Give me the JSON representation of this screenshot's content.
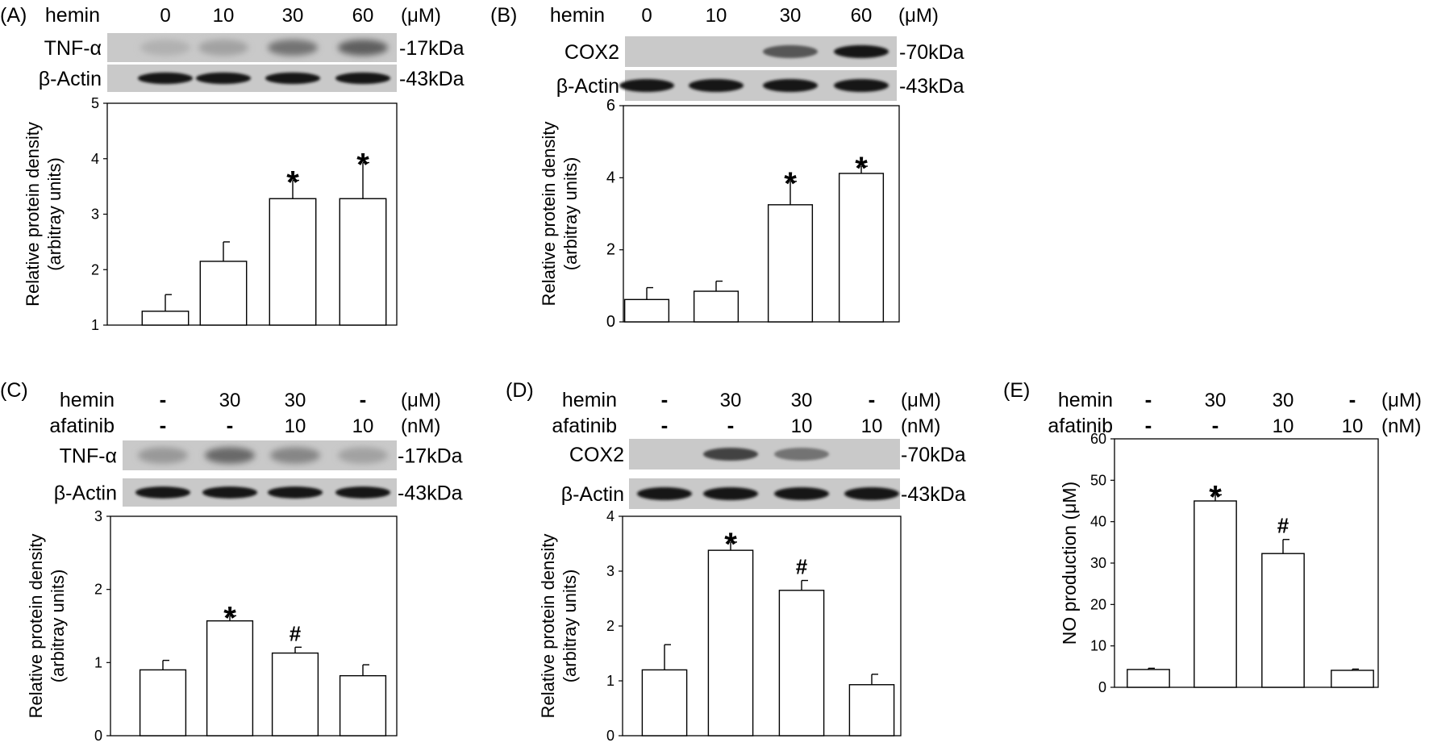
{
  "figure": {
    "panels": [
      {
        "letter": "(A)",
        "treatments": [
          {
            "name": "hemin",
            "unit": "(μM)",
            "values": [
              "0",
              "10",
              "30",
              "60"
            ]
          }
        ],
        "blots": [
          {
            "protein": "TNF-α",
            "size": "-17kDa",
            "intensities": [
              0.12,
              0.2,
              0.45,
              0.55
            ],
            "diffuse": true
          },
          {
            "protein": "β-Actin",
            "size": "-43kDa",
            "intensities": [
              0.95,
              0.95,
              0.95,
              0.95
            ],
            "diffuse": false
          }
        ]
      },
      {
        "letter": "(B)",
        "treatments": [
          {
            "name": "hemin",
            "unit": "(μM)",
            "values": [
              "0",
              "10",
              "30",
              "60"
            ]
          }
        ],
        "blots": [
          {
            "protein": "COX2",
            "size": "-70kDa",
            "intensities": [
              0.0,
              0.0,
              0.6,
              0.95
            ],
            "diffuse": false
          },
          {
            "protein": "β-Actin",
            "size": "-43kDa",
            "intensities": [
              0.95,
              0.95,
              0.95,
              0.95
            ],
            "diffuse": false
          }
        ]
      },
      {
        "letter": "(C)",
        "treatments": [
          {
            "name": "hemin",
            "unit": "(μM)",
            "values": [
              "-",
              "30",
              "30",
              "-"
            ]
          },
          {
            "name": "afatinib",
            "unit": "(nM)",
            "values": [
              "-",
              "-",
              "10",
              "10"
            ]
          }
        ],
        "blots": [
          {
            "protein": "TNF-α",
            "size": "-17kDa",
            "intensities": [
              0.25,
              0.5,
              0.35,
              0.2
            ],
            "diffuse": true
          },
          {
            "protein": "β-Actin",
            "size": "-43kDa",
            "intensities": [
              0.95,
              0.95,
              0.95,
              0.95
            ],
            "diffuse": false
          }
        ]
      },
      {
        "letter": "(D)",
        "treatments": [
          {
            "name": "hemin",
            "unit": "(μM)",
            "values": [
              "-",
              "30",
              "30",
              "-"
            ]
          },
          {
            "name": "afatinib",
            "unit": "(nM)",
            "values": [
              "-",
              "-",
              "10",
              "10"
            ]
          }
        ],
        "blots": [
          {
            "protein": "COX2",
            "size": "-70kDa",
            "intensities": [
              0.0,
              0.7,
              0.45,
              0.0
            ],
            "diffuse": false
          },
          {
            "protein": "β-Actin",
            "size": "-43kDa",
            "intensities": [
              0.95,
              0.95,
              0.95,
              0.95
            ],
            "diffuse": false
          }
        ]
      },
      {
        "letter": "(E)",
        "treatments": [
          {
            "name": "hemin",
            "unit": "(μM)",
            "values": [
              "-",
              "30",
              "30",
              "-"
            ]
          },
          {
            "name": "afatinib",
            "unit": "(nM)",
            "values": [
              "-",
              "-",
              "10",
              "10"
            ]
          }
        ],
        "blots": []
      }
    ]
  },
  "chart_data": [
    {
      "type": "bar",
      "panel": "(A)",
      "categories": [
        "0",
        "10",
        "30",
        "60"
      ],
      "values": [
        1.25,
        2.15,
        3.28,
        3.28
      ],
      "errors": [
        0.3,
        0.35,
        0.33,
        0.65
      ],
      "significance": [
        "",
        "",
        "*",
        "*"
      ],
      "ylabel": "Relative protein density\n(arbitray units)",
      "xlabel": "",
      "ylim": [
        1,
        5
      ],
      "yticks": [
        1,
        2,
        3,
        4,
        5
      ]
    },
    {
      "type": "bar",
      "panel": "(B)",
      "categories": [
        "0",
        "10",
        "30",
        "60"
      ],
      "values": [
        0.62,
        0.85,
        3.25,
        4.12
      ],
      "errors": [
        0.33,
        0.28,
        0.65,
        0.2
      ],
      "significance": [
        "",
        "",
        "*",
        "*"
      ],
      "ylabel": "Relative protein density\n(arbitray units)",
      "xlabel": "",
      "ylim": [
        0,
        6
      ],
      "yticks": [
        0,
        2,
        4,
        6
      ]
    },
    {
      "type": "bar",
      "panel": "(C)",
      "categories": [
        "-/-",
        "30/-",
        "30/10",
        "-/10"
      ],
      "values": [
        0.9,
        1.57,
        1.13,
        0.82
      ],
      "errors": [
        0.13,
        0.07,
        0.08,
        0.15
      ],
      "significance": [
        "",
        "*",
        "#",
        ""
      ],
      "ylabel": "Relative protein density\n(arbitray units)",
      "xlabel": "",
      "ylim": [
        0,
        3
      ],
      "yticks": [
        0,
        1,
        2,
        3
      ]
    },
    {
      "type": "bar",
      "panel": "(D)",
      "categories": [
        "-/-",
        "30/-",
        "30/10",
        "-/10"
      ],
      "values": [
        1.2,
        3.38,
        2.65,
        0.93
      ],
      "errors": [
        0.46,
        0.15,
        0.18,
        0.19
      ],
      "significance": [
        "",
        "*",
        "#",
        ""
      ],
      "ylabel": "Relative protein density\n(arbitray units)",
      "xlabel": "",
      "ylim": [
        0,
        4
      ],
      "yticks": [
        0,
        1,
        2,
        3,
        4
      ]
    },
    {
      "type": "bar",
      "panel": "(E)",
      "categories": [
        "-/-",
        "30/-",
        "30/10",
        "-/10"
      ],
      "values": [
        4.3,
        45,
        32.3,
        4.1
      ],
      "errors": [
        0.3,
        1.5,
        3.4,
        0.3
      ],
      "significance": [
        "",
        "*",
        "#",
        ""
      ],
      "ylabel": "NO production (μM)",
      "xlabel": "",
      "ylim": [
        0,
        60
      ],
      "yticks": [
        0,
        10,
        20,
        30,
        40,
        50,
        60
      ]
    }
  ]
}
